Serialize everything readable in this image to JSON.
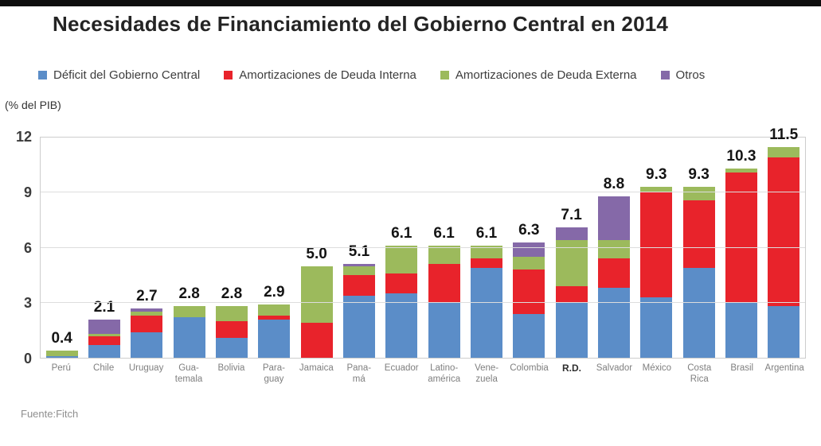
{
  "page": {
    "title": "Necesidades de Financiamiento del Gobierno Central en 2014",
    "unit_label": "(% del PIB)",
    "source": "Fuente:Fitch"
  },
  "chart_data": {
    "type": "bar",
    "subtype": "stacked",
    "title": "Necesidades de Financiamiento del Gobierno Central en 2014",
    "ylabel": "(% del PIB)",
    "ylim": [
      0,
      12
    ],
    "yticks": [
      0,
      3,
      6,
      9,
      12
    ],
    "grid": true,
    "legend_position": "top",
    "series": [
      {
        "name": "Déficit del Gobierno Central",
        "color": "#5b8dc8"
      },
      {
        "name": "Amortizaciones de Deuda Interna",
        "color": "#e8232b"
      },
      {
        "name": "Amortizaciones de Deuda Externa",
        "color": "#9cba5c"
      },
      {
        "name": "Otros",
        "color": "#8569a8"
      }
    ],
    "categories": [
      {
        "label": "Perú",
        "total": "0.4",
        "values": [
          0.1,
          0,
          0.3,
          0
        ]
      },
      {
        "label": "Chile",
        "total": "2.1",
        "values": [
          0.7,
          0.45,
          0.15,
          0.8
        ]
      },
      {
        "label": "Uruguay",
        "total": "2.7",
        "values": [
          1.4,
          0.9,
          0.2,
          0.2
        ]
      },
      {
        "label": "Gua-\ntemala",
        "total": "2.8",
        "values": [
          2.2,
          0,
          0.6,
          0
        ]
      },
      {
        "label": "Bolivia",
        "total": "2.8",
        "values": [
          1.1,
          0.9,
          0.8,
          0
        ]
      },
      {
        "label": "Para-\nguay",
        "total": "2.9",
        "values": [
          2.1,
          0.2,
          0.6,
          0
        ]
      },
      {
        "label": "Jamaica",
        "total": "5.0",
        "values": [
          0,
          1.9,
          3.1,
          0
        ]
      },
      {
        "label": "Pana-\nmá",
        "total": "5.1",
        "values": [
          3.4,
          1.1,
          0.5,
          0.1
        ]
      },
      {
        "label": "Ecuador",
        "total": "6.1",
        "values": [
          3.5,
          1.1,
          1.5,
          0
        ]
      },
      {
        "label": "Latino-\namérica",
        "total": "6.1",
        "values": [
          3.0,
          2.1,
          1.0,
          0
        ]
      },
      {
        "label": "Vene-\nzuela",
        "total": "6.1",
        "values": [
          4.9,
          0.5,
          0.7,
          0
        ]
      },
      {
        "label": "Colombia",
        "total": "6.3",
        "values": [
          2.4,
          2.4,
          0.7,
          0.8
        ]
      },
      {
        "label": "R.D.",
        "total": "7.1",
        "bold": true,
        "values": [
          3.0,
          0.9,
          2.5,
          0.7
        ]
      },
      {
        "label": "Salvador",
        "total": "8.8",
        "values": [
          3.8,
          1.6,
          1.0,
          2.4
        ]
      },
      {
        "label": "México",
        "total": "9.3",
        "values": [
          3.3,
          5.7,
          0.3,
          0
        ]
      },
      {
        "label": "Costa\nRica",
        "total": "9.3",
        "values": [
          4.9,
          3.7,
          0.7,
          0
        ]
      },
      {
        "label": "Brasil",
        "total": "10.3",
        "values": [
          3.0,
          7.1,
          0.2,
          0
        ]
      },
      {
        "label": "Argentina",
        "total": "11.5",
        "values": [
          2.8,
          8.1,
          0.6,
          0
        ]
      }
    ]
  }
}
